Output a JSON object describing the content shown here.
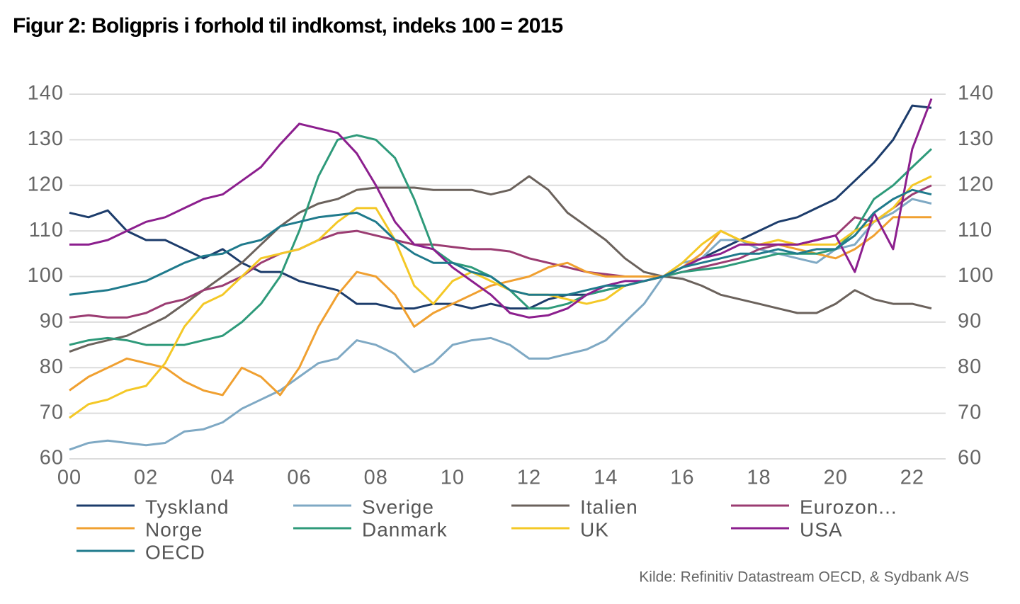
{
  "chart_data": {
    "type": "line",
    "title": "Figur 2: Boligpris i forhold til indkomst, indeks 100 = 2015",
    "source": "Kilde: Refinitiv Datastream OECD, & Sydbank A/S",
    "x": [
      2000,
      2000.5,
      2001,
      2001.5,
      2002,
      2002.5,
      2003,
      2003.5,
      2004,
      2004.5,
      2005,
      2005.5,
      2006,
      2006.5,
      2007,
      2007.5,
      2008,
      2008.5,
      2009,
      2009.5,
      2010,
      2010.5,
      2011,
      2011.5,
      2012,
      2012.5,
      2013,
      2013.5,
      2014,
      2014.5,
      2015,
      2015.5,
      2016,
      2016.5,
      2017,
      2017.5,
      2018,
      2018.5,
      2019,
      2019.5,
      2020,
      2020.5,
      2021,
      2021.5,
      2022,
      2022.5
    ],
    "xlim": [
      2000,
      2023
    ],
    "xticks": [
      {
        "value": 2000,
        "label": "00"
      },
      {
        "value": 2002,
        "label": "02"
      },
      {
        "value": 2004,
        "label": "04"
      },
      {
        "value": 2006,
        "label": "06"
      },
      {
        "value": 2008,
        "label": "08"
      },
      {
        "value": 2010,
        "label": "10"
      },
      {
        "value": 2012,
        "label": "12"
      },
      {
        "value": 2014,
        "label": "14"
      },
      {
        "value": 2016,
        "label": "16"
      },
      {
        "value": 2018,
        "label": "18"
      },
      {
        "value": 2020,
        "label": "20"
      },
      {
        "value": 2022,
        "label": "22"
      }
    ],
    "ylim": [
      60,
      140
    ],
    "yticks": [
      60,
      70,
      80,
      90,
      100,
      110,
      120,
      130,
      140
    ],
    "y2lim": [
      60,
      140
    ],
    "y2ticks": [
      60,
      70,
      80,
      90,
      100,
      110,
      120,
      130,
      140
    ],
    "grid": true,
    "legend": "bottom",
    "series": [
      {
        "name": "Tyskland",
        "color": "#1c3c6b",
        "values": [
          114,
          113,
          114.5,
          110,
          108,
          108,
          106,
          104,
          106,
          103,
          101,
          101,
          99,
          98,
          97,
          94,
          94,
          93,
          93,
          94,
          94,
          93,
          94,
          93,
          93,
          95,
          96,
          96,
          97,
          98,
          99,
          100,
          102,
          104,
          106,
          108,
          110,
          112,
          113,
          115,
          117,
          121,
          125,
          130,
          137.5,
          137
        ]
      },
      {
        "name": "Sverige",
        "color": "#7fa9c4",
        "values": [
          62,
          63.5,
          64,
          63.5,
          63,
          63.5,
          66,
          66.5,
          68,
          71,
          73,
          75,
          78,
          81,
          82,
          86,
          85,
          83,
          79,
          81,
          85,
          86,
          86.5,
          85,
          82,
          82,
          83,
          84,
          86,
          90,
          94,
          100,
          103,
          104,
          108,
          108,
          106,
          105,
          104,
          103,
          106,
          107,
          112,
          114,
          117,
          116
        ]
      },
      {
        "name": "Italien",
        "color": "#6b625c",
        "values": [
          83.5,
          85,
          86,
          87,
          89,
          91,
          94,
          97,
          100,
          103,
          107,
          111,
          114,
          116,
          117,
          119,
          119.5,
          119.5,
          119.5,
          119,
          119,
          119,
          118,
          119,
          122,
          119,
          114,
          111,
          108,
          104,
          101,
          100,
          99.5,
          98,
          96,
          95,
          94,
          93,
          92,
          92,
          94,
          97,
          95,
          94,
          94,
          93
        ]
      },
      {
        "name": "Eurozon...",
        "color": "#9b3c72",
        "values": [
          91,
          91.5,
          91,
          91,
          92,
          94,
          95,
          97,
          98,
          100,
          103,
          105,
          106,
          108,
          109.5,
          110,
          109,
          108,
          107,
          107,
          106.5,
          106,
          106,
          105.5,
          104,
          103,
          102,
          101,
          100.5,
          100,
          100,
          100,
          101,
          102,
          103,
          104,
          106,
          107,
          107,
          108,
          109,
          113,
          112,
          115,
          118,
          120
        ]
      },
      {
        "name": "Norge",
        "color": "#f0a030",
        "values": [
          75,
          78,
          80,
          82,
          81,
          80,
          77,
          75,
          74,
          80,
          78,
          74,
          80,
          89,
          96,
          101,
          100,
          96,
          89,
          92,
          94,
          96,
          98,
          99,
          100,
          102,
          103,
          101,
          100,
          100,
          100,
          100,
          102,
          105,
          110,
          108,
          107,
          107,
          106,
          105,
          104,
          106,
          109,
          113,
          113,
          113
        ]
      },
      {
        "name": "Danmark",
        "color": "#2e9a7a",
        "values": [
          85,
          86,
          86.5,
          86,
          85,
          85,
          85,
          86,
          87,
          90,
          94,
          100,
          110,
          122,
          130,
          131,
          130,
          126,
          117,
          106,
          103,
          102,
          100,
          97,
          93,
          93,
          94,
          96,
          97,
          98,
          99,
          100,
          101,
          101.5,
          102,
          103,
          104,
          105,
          105,
          105,
          106,
          110,
          117,
          120,
          124,
          128
        ]
      },
      {
        "name": "UK",
        "color": "#f4c826",
        "values": [
          69,
          72,
          73,
          75,
          76,
          81,
          89,
          94,
          96,
          100,
          104,
          105,
          106,
          108,
          112,
          115,
          115,
          108,
          98,
          94,
          99,
          101,
          99,
          97,
          96,
          96,
          95,
          94,
          95,
          98,
          99,
          100,
          103,
          107,
          110,
          108,
          107,
          108,
          107,
          107,
          107,
          110,
          112,
          115,
          120,
          122
        ]
      },
      {
        "name": "USA",
        "color": "#8c1f8e",
        "values": [
          107,
          107,
          108,
          110,
          112,
          113,
          115,
          117,
          118,
          121,
          124,
          129,
          133.5,
          132.5,
          131.5,
          127,
          120,
          112,
          107,
          106,
          102,
          99,
          96,
          92,
          91,
          91.5,
          93,
          96,
          98,
          99,
          99,
          100,
          102,
          104,
          105,
          107,
          107,
          107,
          107,
          108,
          109,
          101,
          114,
          106,
          128,
          139
        ]
      },
      {
        "name": "OECD",
        "color": "#1f7a8c",
        "values": [
          96,
          96.5,
          97,
          98,
          99,
          101,
          103,
          104.5,
          105,
          107,
          108,
          111,
          112,
          113,
          113.5,
          114,
          112,
          108,
          105,
          103,
          103,
          101,
          100,
          97,
          96,
          96,
          96,
          97,
          98,
          98,
          99,
          100,
          102,
          103,
          104,
          105,
          105,
          106,
          105,
          106,
          106,
          109,
          114,
          117,
          119,
          118
        ]
      }
    ]
  }
}
